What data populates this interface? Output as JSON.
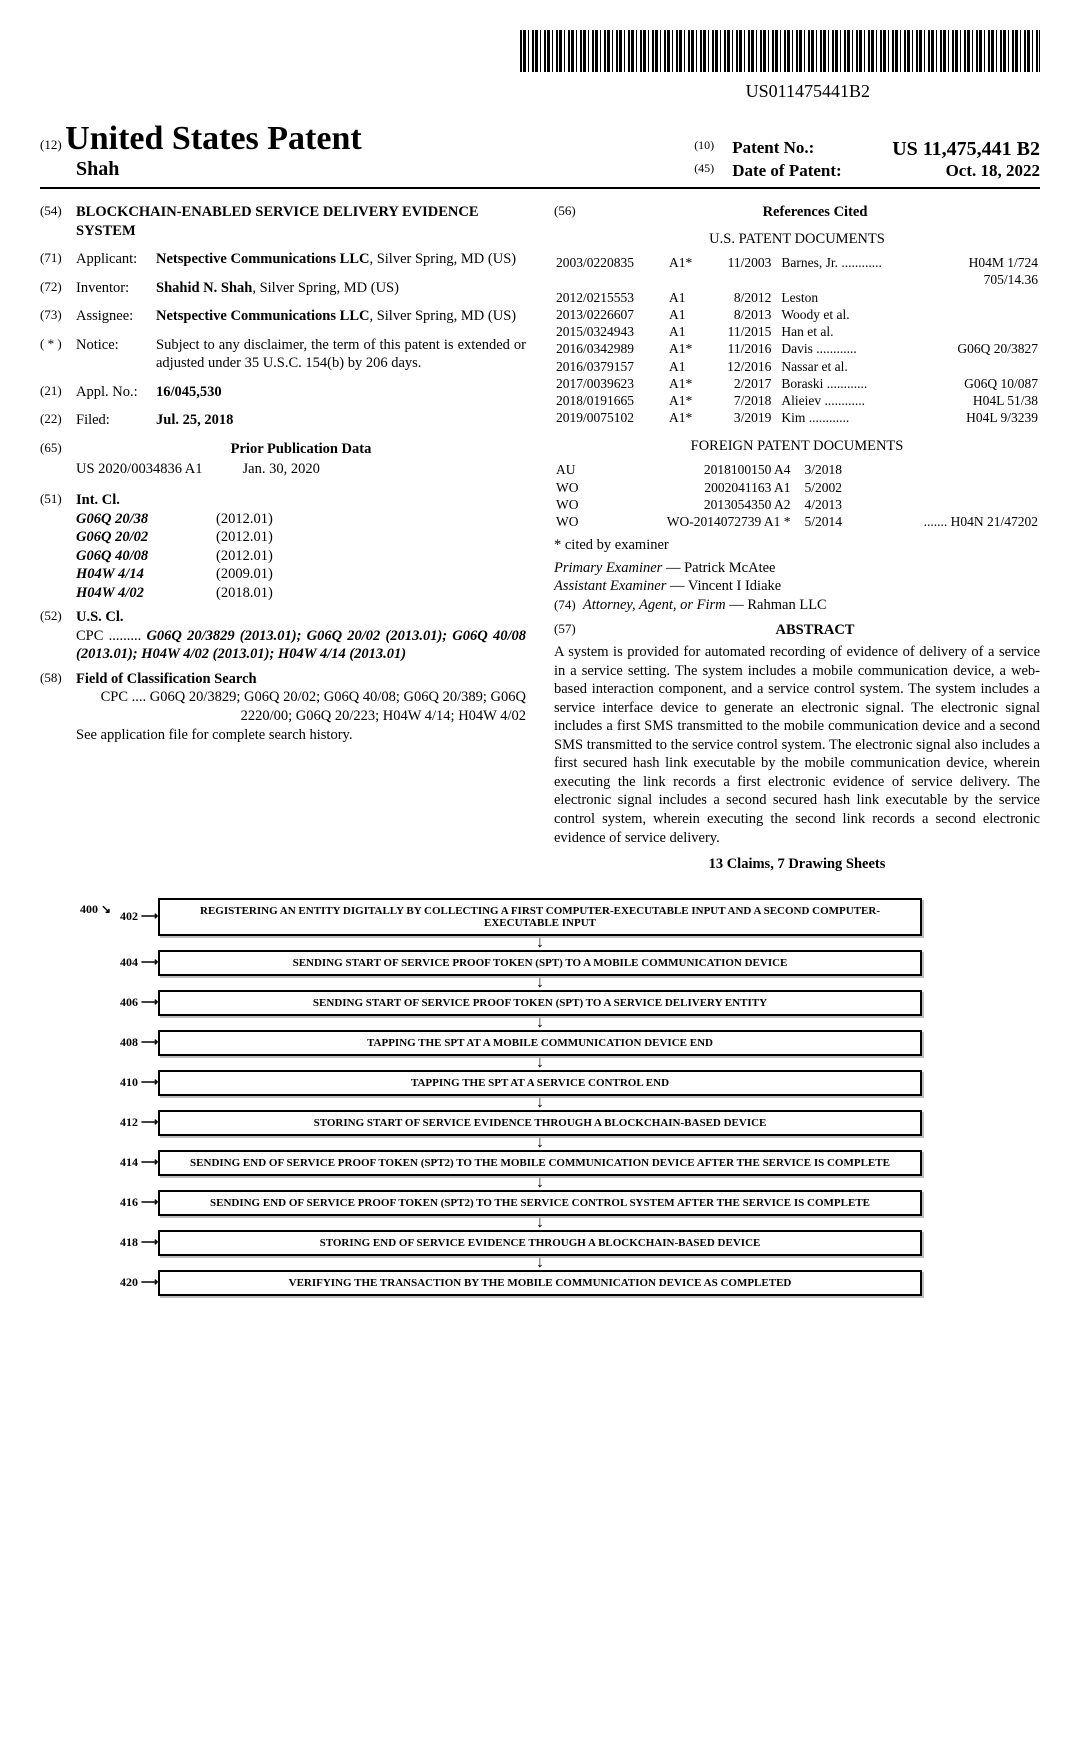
{
  "barcode_number": "US011475441B2",
  "header": {
    "left_tag": "(12)",
    "country": "United States Patent",
    "inventor_short": "Shah",
    "right": [
      {
        "tag": "(10)",
        "label": "Patent No.:",
        "value": "US 11,475,441 B2"
      },
      {
        "tag": "(45)",
        "label": "Date of Patent:",
        "value": "Oct. 18, 2022"
      }
    ]
  },
  "left_col": {
    "title": {
      "num": "(54)",
      "text": "BLOCKCHAIN-ENABLED SERVICE DELIVERY EVIDENCE SYSTEM"
    },
    "applicant": {
      "num": "(71)",
      "label": "Applicant:",
      "value_bold": "Netspective Communications LLC",
      "value_rest": ", Silver Spring, MD (US)"
    },
    "inventor": {
      "num": "(72)",
      "label": "Inventor:",
      "value_bold": "Shahid N. Shah",
      "value_rest": ", Silver Spring, MD (US)"
    },
    "assignee": {
      "num": "(73)",
      "label": "Assignee:",
      "value_bold": "Netspective Communications LLC",
      "value_rest": ", Silver Spring, MD (US)"
    },
    "notice": {
      "num": "( * )",
      "label": "Notice:",
      "text": "Subject to any disclaimer, the term of this patent is extended or adjusted under 35 U.S.C. 154(b) by 206 days."
    },
    "applno": {
      "num": "(21)",
      "label": "Appl. No.:",
      "value": "16/045,530"
    },
    "filed": {
      "num": "(22)",
      "label": "Filed:",
      "value": "Jul. 25, 2018"
    },
    "priorpub": {
      "num": "(65)",
      "title": "Prior Publication Data",
      "pubno": "US 2020/0034836 A1",
      "pubdate": "Jan. 30, 2020"
    },
    "intcl": {
      "num": "(51)",
      "label": "Int. Cl.",
      "rows": [
        {
          "code": "G06Q 20/38",
          "date": "(2012.01)"
        },
        {
          "code": "G06Q 20/02",
          "date": "(2012.01)"
        },
        {
          "code": "G06Q 40/08",
          "date": "(2012.01)"
        },
        {
          "code": "H04W 4/14",
          "date": "(2009.01)"
        },
        {
          "code": "H04W 4/02",
          "date": "(2018.01)"
        }
      ]
    },
    "uscl": {
      "num": "(52)",
      "label": "U.S. Cl.",
      "text_lead": "CPC .........",
      "text": "G06Q 20/3829 (2013.01); G06Q 20/02 (2013.01); G06Q 40/08 (2013.01); H04W 4/02 (2013.01); H04W 4/14 (2013.01)"
    },
    "fcs": {
      "num": "(58)",
      "label": "Field of Classification Search",
      "text": "CPC .... G06Q 20/3829; G06Q 20/02; G06Q 40/08; G06Q 20/389; G06Q 2220/00; G06Q 20/223; H04W 4/14; H04W 4/02",
      "footer": "See application file for complete search history."
    }
  },
  "right_col": {
    "refs_num": "(56)",
    "refs_title": "References Cited",
    "us_title": "U.S. PATENT DOCUMENTS",
    "us_refs": [
      {
        "no": "2003/0220835",
        "kind": "A1*",
        "date": "11/2003",
        "name": "Barnes, Jr.",
        "cls": "H04M 1/724",
        "cls2": "705/14.36"
      },
      {
        "no": "2012/0215553",
        "kind": "A1",
        "date": "8/2012",
        "name": "Leston",
        "cls": "",
        "cls2": ""
      },
      {
        "no": "2013/0226607",
        "kind": "A1",
        "date": "8/2013",
        "name": "Woody et al.",
        "cls": "",
        "cls2": ""
      },
      {
        "no": "2015/0324943",
        "kind": "A1",
        "date": "11/2015",
        "name": "Han et al.",
        "cls": "",
        "cls2": ""
      },
      {
        "no": "2016/0342989",
        "kind": "A1*",
        "date": "11/2016",
        "name": "Davis",
        "cls": "G06Q 20/3827",
        "cls2": ""
      },
      {
        "no": "2016/0379157",
        "kind": "A1",
        "date": "12/2016",
        "name": "Nassar et al.",
        "cls": "",
        "cls2": ""
      },
      {
        "no": "2017/0039623",
        "kind": "A1*",
        "date": "2/2017",
        "name": "Boraski",
        "cls": "G06Q 10/087",
        "cls2": ""
      },
      {
        "no": "2018/0191665",
        "kind": "A1*",
        "date": "7/2018",
        "name": "Alieiev",
        "cls": "H04L 51/38",
        "cls2": ""
      },
      {
        "no": "2019/0075102",
        "kind": "A1*",
        "date": "3/2019",
        "name": "Kim",
        "cls": "H04L 9/3239",
        "cls2": ""
      }
    ],
    "foreign_title": "FOREIGN PATENT DOCUMENTS",
    "foreign_refs": [
      {
        "cc": "AU",
        "no": "2018100150 A4",
        "date": "3/2018",
        "cls": ""
      },
      {
        "cc": "WO",
        "no": "2002041163 A1",
        "date": "5/2002",
        "cls": ""
      },
      {
        "cc": "WO",
        "no": "2013054350 A2",
        "date": "4/2013",
        "cls": ""
      },
      {
        "cc": "WO",
        "no": "WO-2014072739 A1 *",
        "date": "5/2014",
        "cls": "H04N 21/47202"
      }
    ],
    "cited_note": "* cited by examiner",
    "primary": {
      "label": "Primary Examiner",
      "name": "Patrick McAtee"
    },
    "assistant": {
      "label": "Assistant Examiner",
      "name": "Vincent I Idiake"
    },
    "attorney": {
      "num": "(74)",
      "label": "Attorney, Agent, or Firm",
      "name": "Rahman LLC"
    },
    "abstract_num": "(57)",
    "abstract_title": "ABSTRACT",
    "abstract": "A system is provided for automated recording of evidence of delivery of a service in a service setting. The system includes a mobile communication device, a web-based interaction component, and a service control system. The system includes a service interface device to generate an electronic signal. The electronic signal includes a first SMS transmitted to the mobile communication device and a second SMS transmitted to the service control system. The electronic signal also includes a first secured hash link executable by the mobile communication device, wherein executing the link records a first electronic evidence of service delivery. The electronic signal includes a second secured hash link executable by the service control system, wherein executing the second link records a second electronic evidence of service delivery.",
    "claims": "13 Claims, 7 Drawing Sheets"
  },
  "flowchart": {
    "diagram_label": "400",
    "steps": [
      {
        "num": "402",
        "text": "REGISTERING AN ENTITY DIGITALLY BY COLLECTING A FIRST COMPUTER-EXECUTABLE INPUT AND A SECOND COMPUTER-EXECUTABLE INPUT"
      },
      {
        "num": "404",
        "text": "SENDING START OF SERVICE PROOF TOKEN (SPT) TO A MOBILE COMMUNICATION DEVICE"
      },
      {
        "num": "406",
        "text": "SENDING START OF SERVICE PROOF TOKEN (SPT) TO A SERVICE DELIVERY ENTITY"
      },
      {
        "num": "408",
        "text": "TAPPING THE SPT AT A MOBILE COMMUNICATION DEVICE END"
      },
      {
        "num": "410",
        "text": "TAPPING THE SPT AT A SERVICE CONTROL END"
      },
      {
        "num": "412",
        "text": "STORING START OF SERVICE EVIDENCE THROUGH A BLOCKCHAIN-BASED DEVICE"
      },
      {
        "num": "414",
        "text": "SENDING END OF SERVICE PROOF TOKEN (SPT2) TO THE MOBILE COMMUNICATION DEVICE AFTER THE SERVICE IS COMPLETE"
      },
      {
        "num": "416",
        "text": "SENDING END OF SERVICE PROOF TOKEN (SPT2) TO THE SERVICE CONTROL SYSTEM AFTER THE SERVICE IS COMPLETE"
      },
      {
        "num": "418",
        "text": "STORING END OF SERVICE EVIDENCE THROUGH A BLOCKCHAIN-BASED DEVICE"
      },
      {
        "num": "420",
        "text": "VERIFYING THE TRANSACTION BY THE MOBILE COMMUNICATION DEVICE AS COMPLETED"
      }
    ]
  }
}
